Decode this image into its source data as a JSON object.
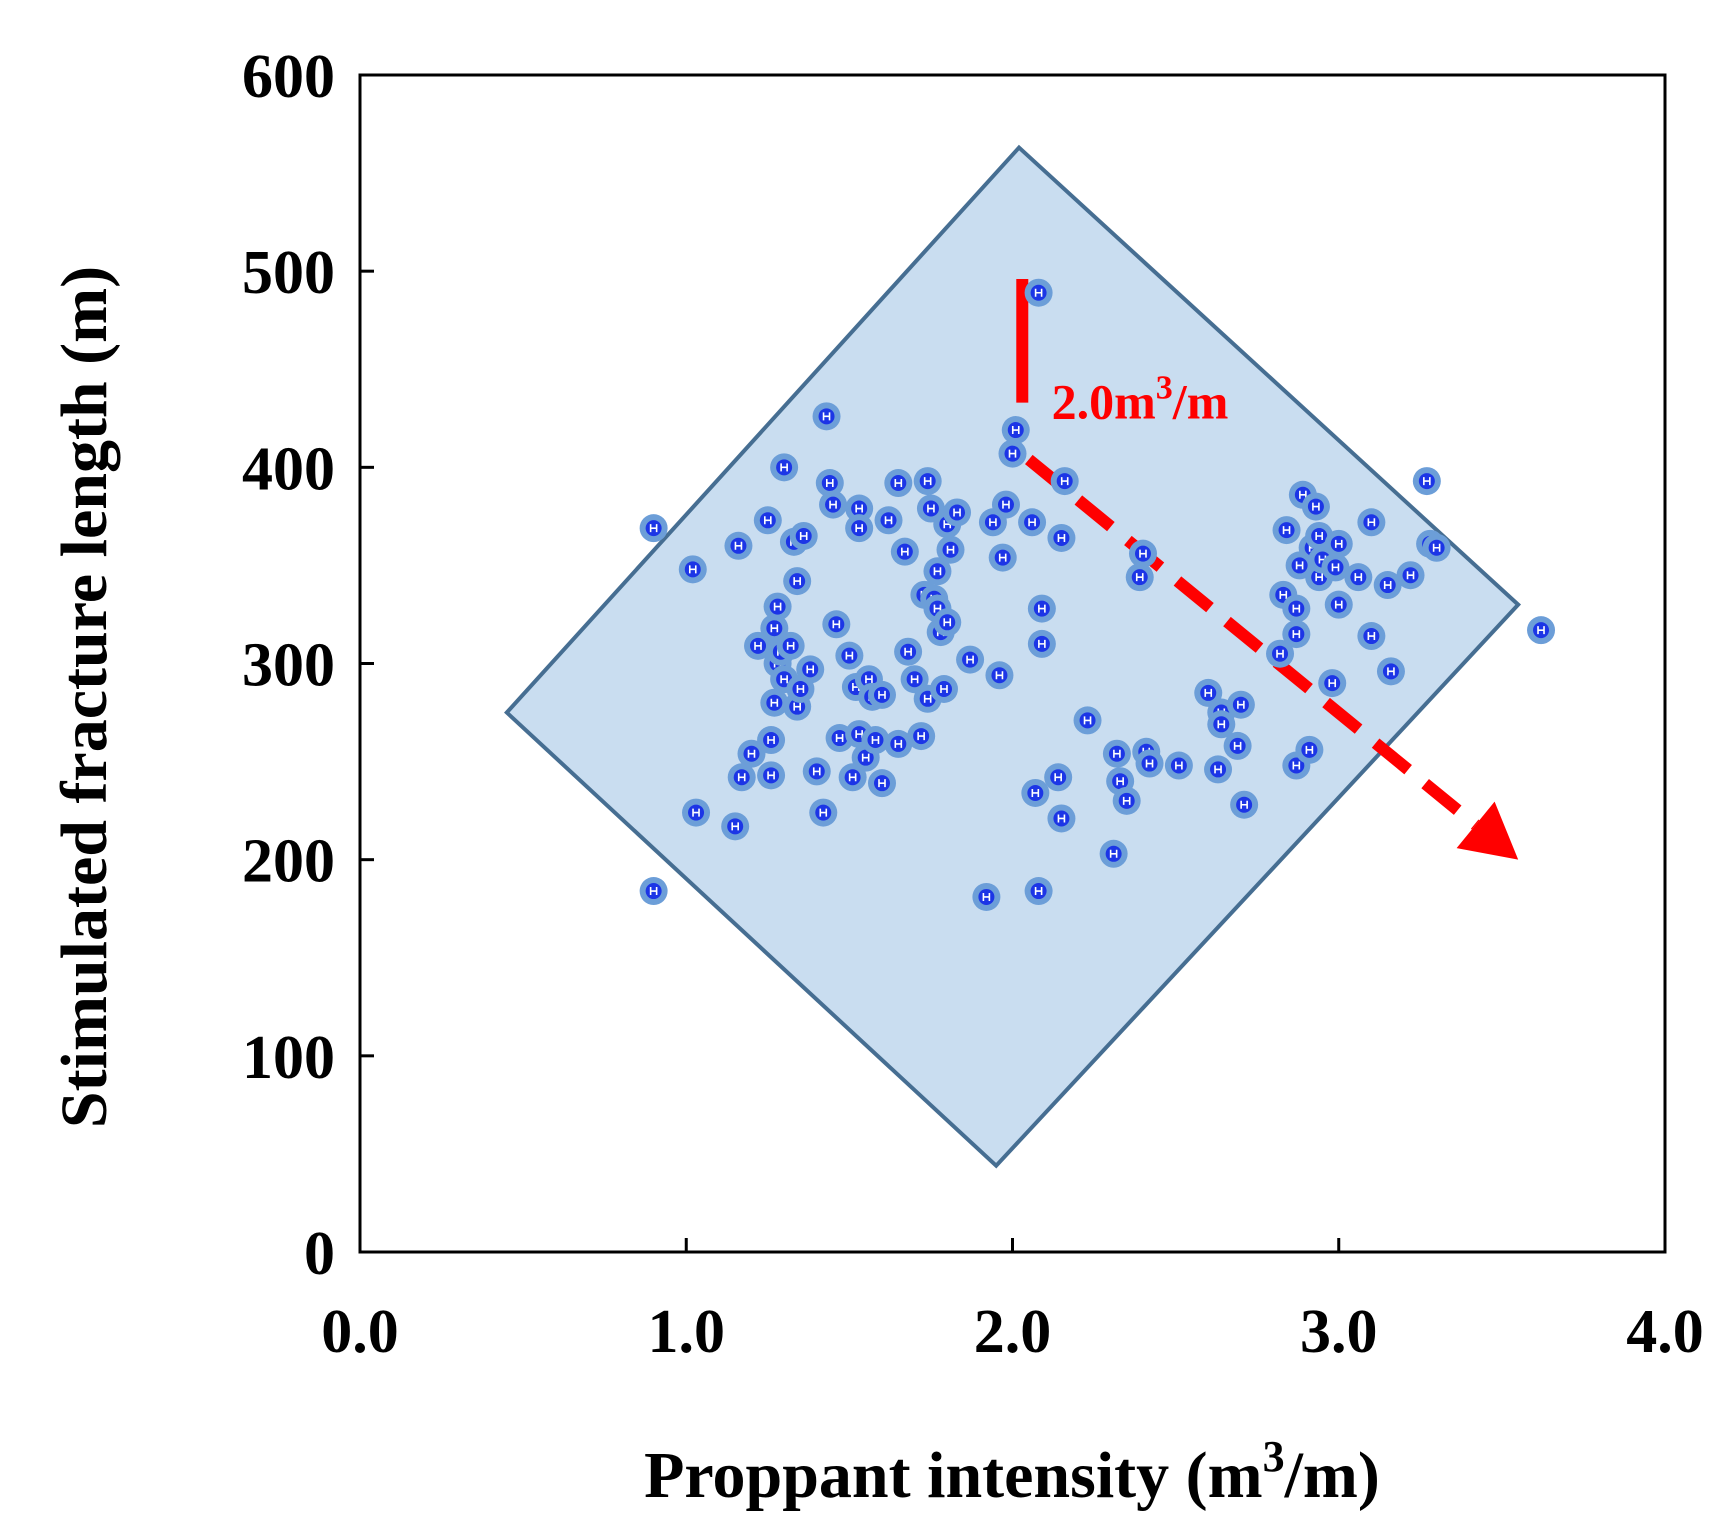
{
  "chart_data": {
    "type": "scatter",
    "title": "",
    "xlabel": {
      "main": "Proppant intensity (m",
      "sup": "3",
      "tail": "/m)"
    },
    "ylabel": "Stimulated fracture length (m)",
    "xlim": [
      0,
      4
    ],
    "ylim": [
      0,
      600
    ],
    "xticks": [
      0,
      1,
      2,
      3,
      4
    ],
    "xtick_labels": [
      "0.0",
      "1.0",
      "2.0",
      "3.0",
      "4.0"
    ],
    "yticks": [
      0,
      100,
      200,
      300,
      400,
      500,
      600
    ],
    "ytick_labels": [
      "0",
      "100",
      "200",
      "300",
      "400",
      "500",
      "600"
    ],
    "grid": false,
    "region": {
      "shape": "diamond",
      "vertices": [
        [
          2.02,
          563
        ],
        [
          3.55,
          330
        ],
        [
          1.95,
          44
        ],
        [
          0.45,
          275
        ]
      ],
      "fill": "#c9ddf0",
      "stroke": "#466e92"
    },
    "annotation": {
      "main": "2.0m",
      "sup": "3",
      "tail": "/m",
      "color": "#ff0000",
      "anchor": [
        2.12,
        425
      ],
      "vertical_line": {
        "x": 2.03,
        "y_start": 496,
        "y_end": 433
      },
      "arrow": {
        "from": [
          2.05,
          404
        ],
        "to": [
          3.55,
          200
        ],
        "style": "dashed"
      }
    },
    "marker_colors": {
      "outer": "#6c9ed8",
      "inner": "#1c35e6",
      "symbol": "#ffffff"
    },
    "points": [
      [
        0.9,
        369
      ],
      [
        0.9,
        184
      ],
      [
        1.02,
        348
      ],
      [
        1.03,
        224
      ],
      [
        1.15,
        217
      ],
      [
        1.16,
        360
      ],
      [
        1.17,
        242
      ],
      [
        1.2,
        254
      ],
      [
        1.22,
        309
      ],
      [
        1.25,
        373
      ],
      [
        1.26,
        261
      ],
      [
        1.26,
        243
      ],
      [
        1.27,
        318
      ],
      [
        1.27,
        280
      ],
      [
        1.28,
        329
      ],
      [
        1.28,
        300
      ],
      [
        1.29,
        306
      ],
      [
        1.3,
        400
      ],
      [
        1.3,
        292
      ],
      [
        1.32,
        309
      ],
      [
        1.33,
        362
      ],
      [
        1.34,
        342
      ],
      [
        1.34,
        278
      ],
      [
        1.35,
        287
      ],
      [
        1.36,
        365
      ],
      [
        1.38,
        297
      ],
      [
        1.4,
        245
      ],
      [
        1.42,
        224
      ],
      [
        1.43,
        426
      ],
      [
        1.44,
        392
      ],
      [
        1.45,
        381
      ],
      [
        1.46,
        320
      ],
      [
        1.47,
        262
      ],
      [
        1.5,
        304
      ],
      [
        1.51,
        242
      ],
      [
        1.52,
        288
      ],
      [
        1.53,
        379
      ],
      [
        1.53,
        369
      ],
      [
        1.53,
        264
      ],
      [
        1.55,
        252
      ],
      [
        1.56,
        292
      ],
      [
        1.57,
        283
      ],
      [
        1.58,
        261
      ],
      [
        1.6,
        284
      ],
      [
        1.6,
        239
      ],
      [
        1.62,
        373
      ],
      [
        1.65,
        392
      ],
      [
        1.65,
        259
      ],
      [
        1.67,
        357
      ],
      [
        1.68,
        306
      ],
      [
        1.7,
        292
      ],
      [
        1.72,
        263
      ],
      [
        1.73,
        335
      ],
      [
        1.74,
        393
      ],
      [
        1.74,
        282
      ],
      [
        1.75,
        379
      ],
      [
        1.76,
        333
      ],
      [
        1.77,
        347
      ],
      [
        1.77,
        328
      ],
      [
        1.78,
        316
      ],
      [
        1.79,
        287
      ],
      [
        1.8,
        371
      ],
      [
        1.8,
        321
      ],
      [
        1.81,
        358
      ],
      [
        1.83,
        377
      ],
      [
        1.87,
        302
      ],
      [
        1.92,
        181
      ],
      [
        1.94,
        372
      ],
      [
        1.96,
        294
      ],
      [
        1.97,
        354
      ],
      [
        1.98,
        381
      ],
      [
        2.0,
        407
      ],
      [
        2.01,
        419
      ],
      [
        2.06,
        372
      ],
      [
        2.07,
        234
      ],
      [
        2.08,
        184
      ],
      [
        2.08,
        489
      ],
      [
        2.09,
        328
      ],
      [
        2.09,
        310
      ],
      [
        2.14,
        242
      ],
      [
        2.15,
        364
      ],
      [
        2.15,
        221
      ],
      [
        2.16,
        393
      ],
      [
        2.23,
        271
      ],
      [
        2.31,
        203
      ],
      [
        2.32,
        254
      ],
      [
        2.33,
        240
      ],
      [
        2.35,
        230
      ],
      [
        2.39,
        344
      ],
      [
        2.4,
        356
      ],
      [
        2.41,
        255
      ],
      [
        2.42,
        249
      ],
      [
        2.51,
        248
      ],
      [
        2.6,
        285
      ],
      [
        2.63,
        246
      ],
      [
        2.64,
        275
      ],
      [
        2.64,
        269
      ],
      [
        2.69,
        258
      ],
      [
        2.7,
        279
      ],
      [
        2.71,
        228
      ],
      [
        2.82,
        305
      ],
      [
        2.83,
        335
      ],
      [
        2.84,
        368
      ],
      [
        2.87,
        328
      ],
      [
        2.87,
        315
      ],
      [
        2.87,
        248
      ],
      [
        2.88,
        350
      ],
      [
        2.89,
        386
      ],
      [
        2.91,
        256
      ],
      [
        2.92,
        359
      ],
      [
        2.93,
        380
      ],
      [
        2.94,
        365
      ],
      [
        2.94,
        344
      ],
      [
        2.95,
        353
      ],
      [
        2.98,
        290
      ],
      [
        2.99,
        349
      ],
      [
        3.0,
        361
      ],
      [
        3.0,
        330
      ],
      [
        3.06,
        344
      ],
      [
        3.1,
        372
      ],
      [
        3.1,
        314
      ],
      [
        3.15,
        340
      ],
      [
        3.16,
        296
      ],
      [
        3.22,
        345
      ],
      [
        3.27,
        393
      ],
      [
        3.28,
        361
      ],
      [
        3.3,
        359
      ],
      [
        3.62,
        317
      ]
    ]
  }
}
